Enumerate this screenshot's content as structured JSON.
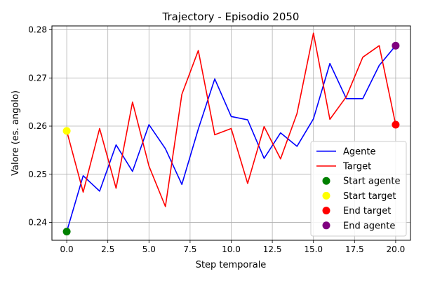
{
  "chart_data": {
    "type": "line",
    "title": "Trajectory - Episodio 2050",
    "xlabel": "Step temporale",
    "ylabel": "Valore (es. angolo)",
    "xlim": [
      -0.9,
      20.9
    ],
    "ylim": [
      0.2363,
      0.2808
    ],
    "xticks": [
      0,
      2.5,
      5,
      7.5,
      10,
      12.5,
      15,
      17.5,
      20
    ],
    "xtick_labels": [
      "0.0",
      "2.5",
      "5.0",
      "7.5",
      "10.0",
      "12.5",
      "15.0",
      "17.5",
      "20.0"
    ],
    "yticks": [
      0.24,
      0.25,
      0.26,
      0.27,
      0.28
    ],
    "ytick_labels": [
      "0.24",
      "0.25",
      "0.26",
      "0.27",
      "0.28"
    ],
    "grid": true,
    "legend_position": "lower-right",
    "x": [
      0,
      1,
      2,
      3,
      4,
      5,
      6,
      7,
      8,
      9,
      10,
      11,
      12,
      13,
      14,
      15,
      16,
      17,
      18,
      19,
      20
    ],
    "series": [
      {
        "name": "Agente",
        "color": "#0000ff",
        "values": [
          0.2381,
          0.2497,
          0.2465,
          0.2561,
          0.2506,
          0.2603,
          0.2553,
          0.2479,
          0.2594,
          0.2698,
          0.262,
          0.2613,
          0.2533,
          0.2586,
          0.2558,
          0.2615,
          0.273,
          0.2657,
          0.2657,
          0.2726,
          0.2767
        ]
      },
      {
        "name": "Target",
        "color": "#ff0000",
        "values": [
          0.259,
          0.2463,
          0.2595,
          0.2471,
          0.265,
          0.2517,
          0.2433,
          0.2666,
          0.2757,
          0.2582,
          0.2595,
          0.2481,
          0.2599,
          0.2532,
          0.2626,
          0.2793,
          0.2614,
          0.2661,
          0.2743,
          0.2767,
          0.2603
        ]
      }
    ],
    "markers": [
      {
        "name": "Start agente",
        "x": 0,
        "y": 0.2381,
        "color": "#008000"
      },
      {
        "name": "Start target",
        "x": 0,
        "y": 0.259,
        "color": "#ffff00"
      },
      {
        "name": "End target",
        "x": 20,
        "y": 0.2603,
        "color": "#ff0000"
      },
      {
        "name": "End agente",
        "x": 20,
        "y": 0.2767,
        "color": "#800080"
      }
    ]
  }
}
